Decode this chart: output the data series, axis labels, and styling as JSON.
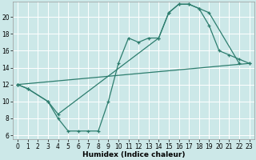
{
  "title": "",
  "xlabel": "Humidex (Indice chaleur)",
  "bg_color": "#cce8e8",
  "grid_color": "#ffffff",
  "line_color": "#2d7d6e",
  "xlim": [
    -0.5,
    23.5
  ],
  "ylim": [
    5.5,
    21.8
  ],
  "xticks": [
    0,
    1,
    2,
    3,
    4,
    5,
    6,
    7,
    8,
    9,
    10,
    11,
    12,
    13,
    14,
    15,
    16,
    17,
    18,
    19,
    20,
    21,
    22,
    23
  ],
  "yticks": [
    6,
    8,
    10,
    12,
    14,
    16,
    18,
    20
  ],
  "line1_x": [
    0,
    1,
    3,
    4,
    14,
    15,
    16,
    17,
    18,
    19,
    22
  ],
  "line1_y": [
    12,
    11.5,
    10,
    8.5,
    17.5,
    20.5,
    21.5,
    21.5,
    21.0,
    20.5,
    14.5
  ],
  "line2_x": [
    0,
    1,
    3,
    4,
    5,
    6,
    7,
    8,
    9,
    10,
    11,
    12,
    13,
    14,
    15,
    16,
    17,
    18,
    19,
    20,
    21,
    22,
    23
  ],
  "line2_y": [
    12,
    11.5,
    10,
    8,
    6.5,
    6.5,
    6.5,
    6.5,
    10,
    14.5,
    17.5,
    17.0,
    17.5,
    17.5,
    20.5,
    21.5,
    21.5,
    21.0,
    19.0,
    16.0,
    15.5,
    15.0,
    14.5
  ],
  "line3_x": [
    0,
    23
  ],
  "line3_y": [
    12,
    14.5
  ],
  "tick_fontsize": 5.5,
  "xlabel_fontsize": 6.5
}
